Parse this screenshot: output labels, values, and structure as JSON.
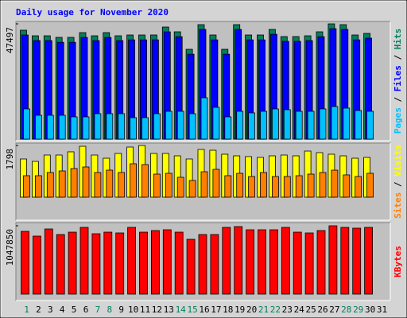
{
  "chart_data": [
    {
      "type": "bar",
      "title": "Daily usage for November 2020",
      "ylim": [
        0,
        47497
      ],
      "yticks": [
        47497
      ],
      "legend_separator": " / ",
      "series": [
        {
          "name": "Hits",
          "color": "#00805c",
          "values": [
            44877,
            42583,
            42583,
            41928,
            41928,
            43893,
            42583,
            43893,
            42583,
            42911,
            42911,
            42911,
            46187,
            44221,
            37015,
            47169,
            42911,
            37015,
            47169,
            42911,
            42911,
            45204,
            42256,
            42256,
            42583,
            44221,
            47497,
            47169,
            42911,
            43566,
            null
          ]
        },
        {
          "name": "Files",
          "color": "#0000ff",
          "values": [
            42900,
            40600,
            40600,
            39900,
            39900,
            41900,
            40600,
            41900,
            40600,
            40900,
            40900,
            40900,
            44200,
            42200,
            35000,
            45200,
            40900,
            35000,
            45200,
            40900,
            40900,
            43200,
            40300,
            40300,
            40600,
            42200,
            45500,
            45200,
            40900,
            41600,
            null
          ]
        },
        {
          "name": "Pages",
          "color": "#00c0ff",
          "values": [
            12448,
            9827,
            9827,
            9827,
            9172,
            9172,
            10482,
            10482,
            10482,
            8844,
            8844,
            10482,
            11465,
            11465,
            10482,
            17033,
            13103,
            9172,
            11465,
            10810,
            11465,
            12448,
            12120,
            11465,
            11465,
            12448,
            13430,
            12775,
            11792,
            11465,
            null
          ]
        }
      ]
    },
    {
      "type": "bar",
      "ylim": [
        0,
        1798
      ],
      "yticks": [
        1798
      ],
      "legend_separator": " / ",
      "series": [
        {
          "name": "Visits",
          "color": "#ffff00",
          "values": [
            1328,
            1245,
            1466,
            1466,
            1577,
            1770,
            1466,
            1355,
            1521,
            1743,
            1798,
            1521,
            1521,
            1438,
            1328,
            1660,
            1632,
            1494,
            1438,
            1411,
            1383,
            1438,
            1466,
            1438,
            1604,
            1549,
            1494,
            1438,
            1355,
            1383,
            null
          ]
        },
        {
          "name": "Sites",
          "color": "#ff8000",
          "values": [
            747,
            747,
            858,
            913,
            996,
            1051,
            858,
            940,
            858,
            1162,
            1134,
            802,
            830,
            692,
            581,
            885,
            968,
            747,
            830,
            719,
            858,
            719,
            719,
            747,
            802,
            858,
            940,
            775,
            719,
            830,
            null
          ]
        }
      ]
    },
    {
      "type": "bar",
      "ylim": [
        0,
        1047850
      ],
      "yticks": [
        1047850
      ],
      "categories": [
        "1",
        "2",
        "3",
        "4",
        "5",
        "6",
        "7",
        "8",
        "9",
        "10",
        "11",
        "12",
        "13",
        "14",
        "15",
        "16",
        "17",
        "18",
        "19",
        "20",
        "21",
        "22",
        "23",
        "24",
        "25",
        "26",
        "27",
        "28",
        "29",
        "30",
        "31"
      ],
      "category_colors": [
        "#00805c",
        "#000000",
        "#000000",
        "#000000",
        "#000000",
        "#000000",
        "#00805c",
        "#00805c",
        "#000000",
        "#000000",
        "#000000",
        "#000000",
        "#000000",
        "#00805c",
        "#00805c",
        "#000000",
        "#000000",
        "#000000",
        "#000000",
        "#000000",
        "#00805c",
        "#00805c",
        "#000000",
        "#000000",
        "#000000",
        "#000000",
        "#000000",
        "#00805c",
        "#00805c",
        "#000000",
        "#000000"
      ],
      "series": [
        {
          "name": "KBytes",
          "color": "#ff0000",
          "values": [
            962570,
            889460,
            999110,
            913820,
            950380,
            1023480,
            926010,
            950380,
            938190,
            1023480,
            950380,
            974740,
            986930,
            950380,
            840720,
            913820,
            913820,
            1023480,
            1035670,
            986930,
            986930,
            986930,
            1023480,
            950380,
            938190,
            974740,
            1047850,
            1023480,
            1011300,
            1023480,
            null
          ]
        }
      ]
    }
  ]
}
